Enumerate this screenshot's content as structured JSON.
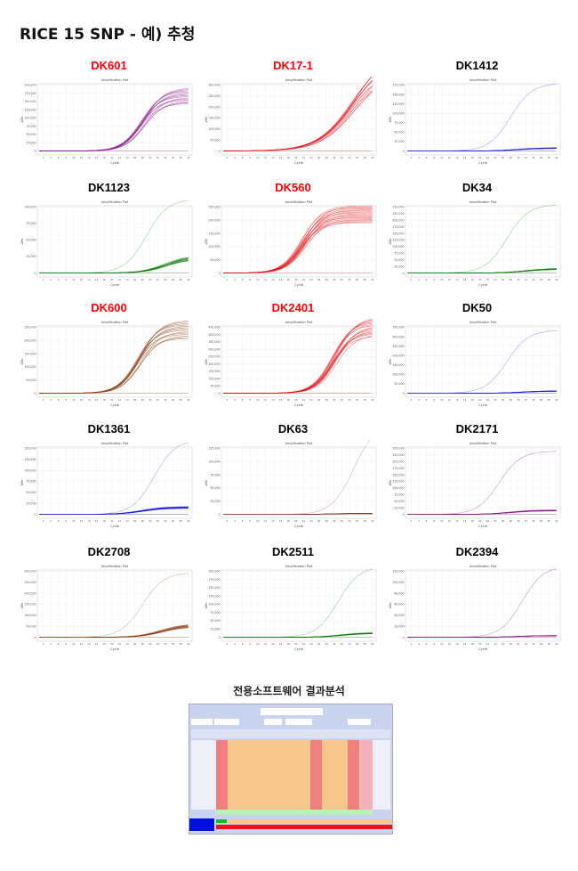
{
  "heading": "RICE 15 SNP - 예) 추청",
  "plot_title": "Amplification Plot",
  "xlabel": "Cycle",
  "ylabel": "ΔRn",
  "software_heading": "전용소프트웨어 결과분석",
  "chart_data": [
    {
      "type": "line",
      "title": "DK601",
      "title_color": "#ff0000",
      "line_color": "#8b1a8b",
      "ylim": [
        0,
        200000
      ],
      "ystep": 25000,
      "single": null,
      "group": {
        "amp": 170000,
        "mid": 28,
        "n": 14
      }
    },
    {
      "type": "line",
      "title": "DK17-1",
      "title_color": "#ff0000",
      "line_color": "#e8141a",
      "ylim": [
        0,
        300000
      ],
      "ystep": 50000,
      "single": null,
      "group": {
        "amp": 420000,
        "mid": 35,
        "n": 14
      }
    },
    {
      "type": "line",
      "title": "DK1412",
      "title_color": "#000000",
      "line_color": "#1a1ae0",
      "ylim": [
        0,
        175000
      ],
      "ystep": 25000,
      "single": {
        "amp": 180000,
        "mid": 28
      },
      "group": {
        "amp": 8000,
        "mid": 30,
        "n": 12
      }
    },
    {
      "type": "line",
      "title": "DK1123",
      "title_color": "#000000",
      "line_color": "#0a7a0a",
      "ylim": [
        0,
        100000
      ],
      "ystep": 25000,
      "single": {
        "amp": 112000,
        "mid": 29
      },
      "group": {
        "amp": 24000,
        "mid": 34,
        "n": 12
      }
    },
    {
      "type": "line",
      "title": "DK560",
      "title_color": "#ff0000",
      "line_color": "#e8141a",
      "ylim": [
        0,
        250000
      ],
      "ystep": 50000,
      "single": null,
      "group": {
        "amp": 225000,
        "mid": 22,
        "n": 18
      }
    },
    {
      "type": "line",
      "title": "DK34",
      "title_color": "#000000",
      "line_color": "#0a7a0a",
      "ylim": [
        0,
        250000
      ],
      "ystep": 25000,
      "single": {
        "amp": 260000,
        "mid": 27
      },
      "group": {
        "amp": 16000,
        "mid": 32,
        "n": 12
      }
    },
    {
      "type": "line",
      "title": "DK600",
      "title_color": "#ff0000",
      "line_color": "#8b3a0f",
      "ylim": [
        0,
        250000
      ],
      "ystep": 50000,
      "single": null,
      "group": {
        "amp": 245000,
        "mid": 27,
        "n": 14
      }
    },
    {
      "type": "line",
      "title": "DK2401",
      "title_color": "#ff0000",
      "line_color": "#e8141a",
      "ylim": [
        0,
        450000
      ],
      "ystep": 50000,
      "single": null,
      "group": {
        "amp": 460000,
        "mid": 30,
        "n": 16
      }
    },
    {
      "type": "line",
      "title": "DK50",
      "title_color": "#000000",
      "line_color": "#1a1ae0",
      "ylim": [
        0,
        350000
      ],
      "ystep": 50000,
      "single": {
        "amp": 335000,
        "mid": 27
      },
      "group": {
        "amp": 12000,
        "mid": 31,
        "n": 12
      }
    },
    {
      "type": "line",
      "title": "DK1361",
      "title_color": "#000000",
      "line_color": "#1a1ae0",
      "ylim": [
        0,
        150000
      ],
      "ystep": 25000,
      "single": {
        "amp": 170000,
        "mid": 31
      },
      "group": {
        "amp": 16000,
        "mid": 28,
        "n": 12
      }
    },
    {
      "type": "line",
      "title": "DK63",
      "title_color": "#000000",
      "line_color": "#8b3a0f",
      "ylim": [
        0,
        125000
      ],
      "ystep": 25000,
      "single": {
        "amp": 170000,
        "mid": 35
      },
      "group": {
        "amp": 2000,
        "mid": 30,
        "n": 12
      }
    },
    {
      "type": "line",
      "title": "DK2171",
      "title_color": "#000000",
      "line_color": "#8b1a8b",
      "ylim": [
        0,
        250000
      ],
      "ystep": 25000,
      "single": {
        "amp": 240000,
        "mid": 25
      },
      "group": {
        "amp": 15000,
        "mid": 28,
        "n": 12
      }
    },
    {
      "type": "line",
      "title": "DK2708",
      "title_color": "#000000",
      "line_color": "#8b3a0f",
      "ylim": [
        0,
        300000
      ],
      "ystep": 50000,
      "single": {
        "amp": 295000,
        "mid": 28
      },
      "group": {
        "amp": 55000,
        "mid": 33,
        "n": 12
      }
    },
    {
      "type": "line",
      "title": "DK2511",
      "title_color": "#000000",
      "line_color": "#0a7a0a",
      "ylim": [
        0,
        200000
      ],
      "ystep": 25000,
      "single": {
        "amp": 215000,
        "mid": 31
      },
      "group": {
        "amp": 13000,
        "mid": 32,
        "n": 12
      }
    },
    {
      "type": "line",
      "title": "DK2394",
      "title_color": "#000000",
      "line_color": "#8b1a8b",
      "ylim": [
        0,
        120000
      ],
      "ystep": 20000,
      "single": {
        "amp": 130000,
        "mid": 31
      },
      "group": {
        "amp": 3000,
        "mid": 30,
        "n": 12
      }
    }
  ]
}
